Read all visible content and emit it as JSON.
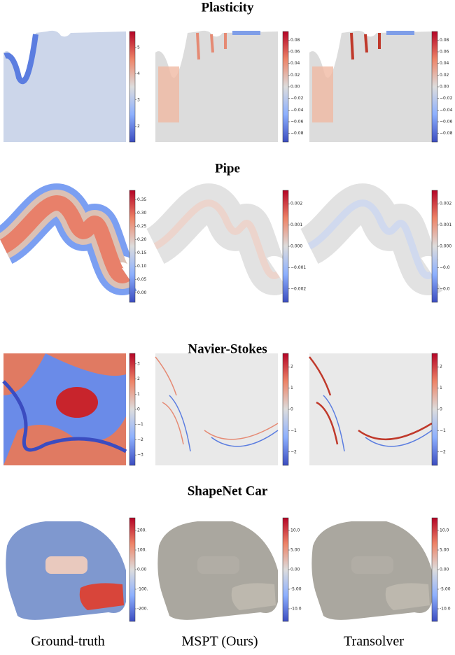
{
  "sections": [
    {
      "title": "Plasticity",
      "colorbars": [
        [
          "5",
          "4",
          "3",
          "2"
        ],
        [
          "0.08",
          "0.06",
          "0.04",
          "0.02",
          "0.00",
          "−0.02",
          "−0.04",
          "−0.06",
          "−0.08"
        ],
        [
          "0.08",
          "0.06",
          "0.04",
          "0.02",
          "0.00",
          "−0.02",
          "−0.04",
          "−0.06",
          "−0.08"
        ]
      ]
    },
    {
      "title": "Pipe",
      "colorbars": [
        [
          "0.35",
          "0.30",
          "0.25",
          "0.20",
          "0.15",
          "0.10",
          "0.05",
          "0.00"
        ],
        [
          "0.002",
          "0.001",
          "0.000",
          "−0.001",
          "−0.002"
        ],
        [
          "0.002",
          "0.001",
          "0.000",
          "−0.0",
          "−0.0"
        ]
      ]
    },
    {
      "title": "Navier-Stokes",
      "colorbars": [
        [
          "3",
          "2",
          "1",
          "0",
          "−1",
          "−2",
          "−3"
        ],
        [
          "2",
          "1",
          "0",
          "−1",
          "−2"
        ],
        [
          "2",
          "1",
          "0",
          "−1",
          "−2"
        ]
      ]
    },
    {
      "title": "ShapeNet Car",
      "colorbars": [
        [
          "200.",
          "100.",
          "0.00",
          "-100.",
          "-200."
        ],
        [
          "10.0",
          "5.00",
          "0.00",
          "-5.00",
          "-10.0"
        ],
        [
          "10.0",
          "5.00",
          "0.00",
          "-5.00",
          "-10.0"
        ]
      ]
    }
  ],
  "columns": [
    "Ground-truth",
    "MSPT (Ours)",
    "Transolver"
  ]
}
